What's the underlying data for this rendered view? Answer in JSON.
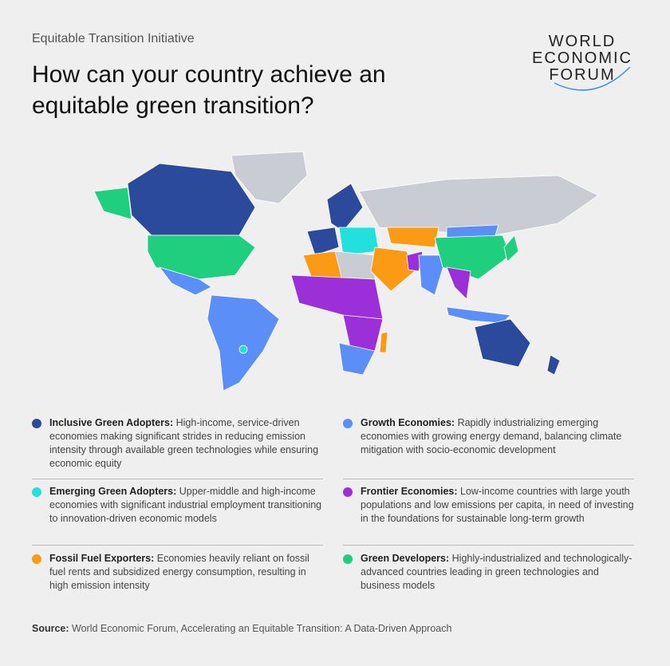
{
  "header": {
    "kicker": "Equitable Transition Initiative",
    "title": "How can your country achieve an equitable green transition?"
  },
  "logo": {
    "lines": [
      "WORLD",
      "ECONOMIC",
      "FORUM"
    ]
  },
  "legend": [
    {
      "color": "#2b4a9b",
      "title": "Inclusive Green Adopters:",
      "text": "High-income, service-driven economies making significant strides in reducing emission intensity through available green technologies while ensuring economic equity"
    },
    {
      "color": "#5b8ff7",
      "title": "Growth Economies:",
      "text": "Rapidly industrializing emerging economies with growing energy demand, balancing climate mitigation with socio-economic development"
    },
    {
      "color": "#22e0dc",
      "title": "Emerging Green Adopters:",
      "text": "Upper-middle and high-income economies with significant industrial employment transitioning to innovation-driven economic models"
    },
    {
      "color": "#9b30d9",
      "title": "Frontier Economies:",
      "text": "Low-income countries with large youth populations and low emissions per capita, in need of investing in the foundations for sustainable long-term growth"
    },
    {
      "color": "#fb9a14",
      "title": "Fossil Fuel Exporters:",
      "text": "Economies heavily reliant on fossil fuel rents and subsidized energy consumption, resulting in high emission intensity"
    },
    {
      "color": "#20cf7e",
      "title": "Green Developers:",
      "text": "Highly-industrialized and technologically-advanced countries leading in green technologies and business models"
    }
  ],
  "source": {
    "label": "Source:",
    "text": "World Economic Forum, Accelerating an Equitable Transition: A Data-Driven Approach"
  }
}
